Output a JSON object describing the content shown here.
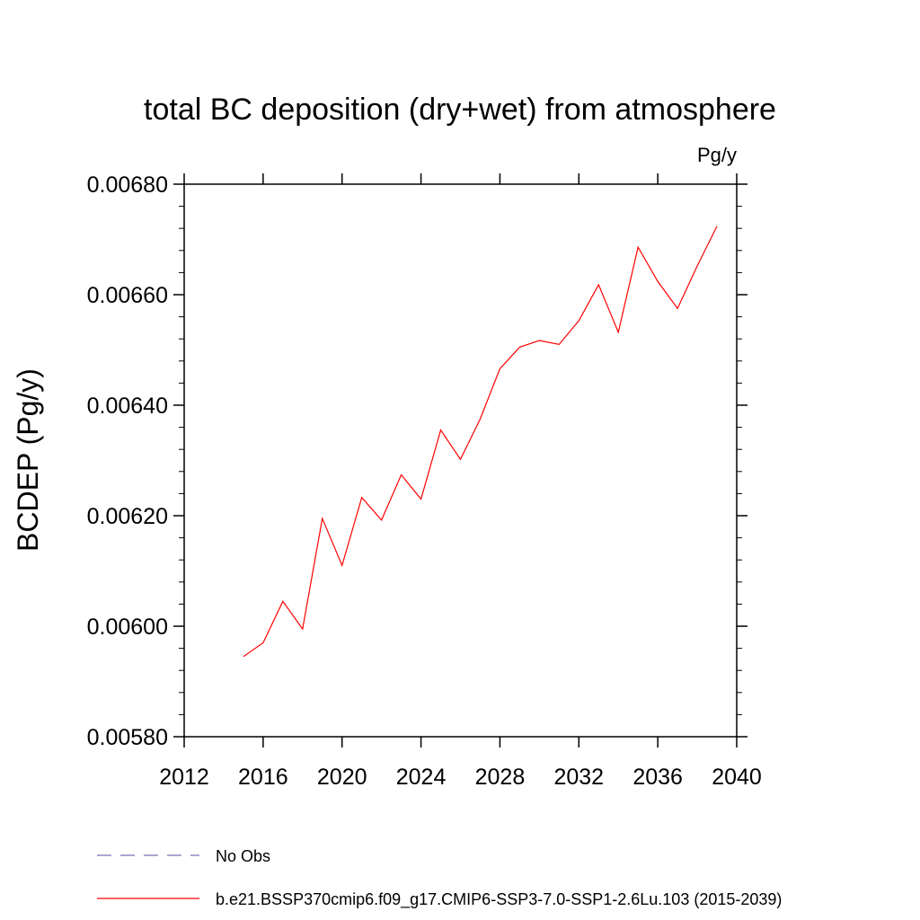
{
  "chart_data": {
    "type": "line",
    "title": "total BC deposition (dry+wet) from atmosphere",
    "units_label": "Pg/y",
    "xlabel": "",
    "ylabel": "BCDEP  (Pg/y)",
    "xlim": [
      2012,
      2040
    ],
    "ylim": [
      0.0058,
      0.0068
    ],
    "x_ticks": [
      2012,
      2016,
      2020,
      2024,
      2028,
      2032,
      2036,
      2040
    ],
    "x_tick_labels": [
      "2012",
      "2016",
      "2020",
      "2024",
      "2028",
      "2032",
      "2036",
      "2040"
    ],
    "y_ticks": [
      0.0058,
      0.006,
      0.0062,
      0.0064,
      0.0066,
      0.0068
    ],
    "y_tick_labels": [
      "0.00580",
      "0.00600",
      "0.00620",
      "0.00640",
      "0.00660",
      "0.00680"
    ],
    "grid": false,
    "legend_position": "bottom",
    "series": [
      {
        "name": "No Obs",
        "color": "#7b6fb3",
        "style": "dashed",
        "x": [],
        "values": []
      },
      {
        "name": "b.e21.BSSP370cmip6.f09_g17.CMIP6-SSP3-7.0-SSP1-2.6Lu.103 (2015-2039)",
        "color": "#ff0000",
        "style": "solid",
        "x": [
          2015,
          2016,
          2017,
          2018,
          2019,
          2020,
          2021,
          2022,
          2023,
          2024,
          2025,
          2026,
          2027,
          2028,
          2029,
          2030,
          2031,
          2032,
          2033,
          2034,
          2035,
          2036,
          2037,
          2038,
          2039
        ],
        "values": [
          0.005945,
          0.00597,
          0.006045,
          0.005995,
          0.006195,
          0.00611,
          0.006233,
          0.006192,
          0.006274,
          0.00623,
          0.006355,
          0.006302,
          0.006375,
          0.006466,
          0.006505,
          0.006517,
          0.00651,
          0.006553,
          0.006618,
          0.006532,
          0.006686,
          0.006624,
          0.006575,
          0.006652,
          0.006724
        ]
      }
    ]
  }
}
